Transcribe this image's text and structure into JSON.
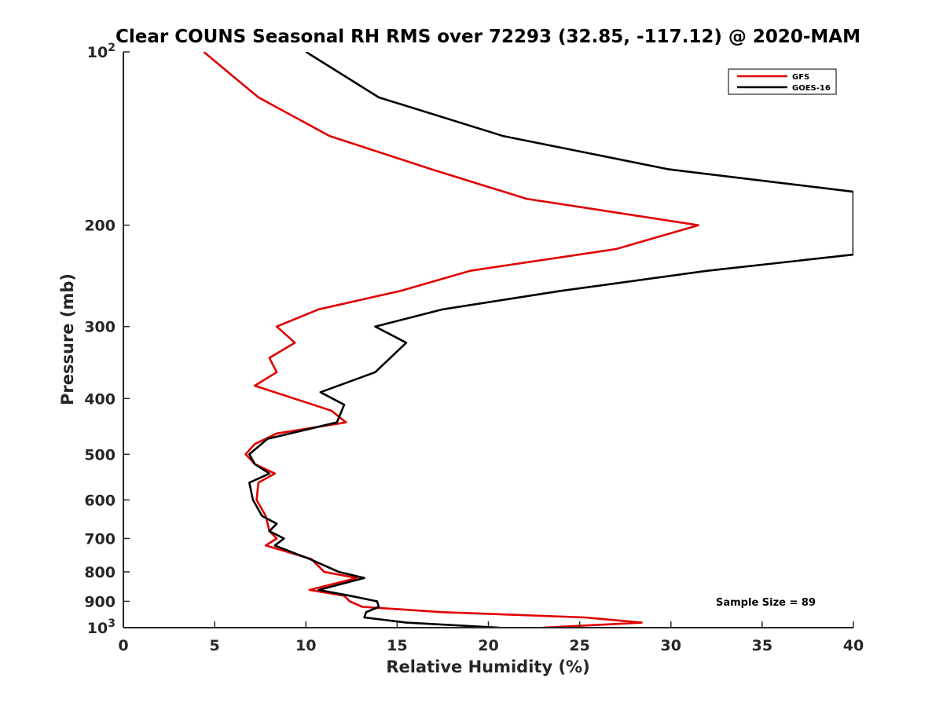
{
  "chart_data": {
    "type": "line",
    "title": "Clear COUNS Seasonal RH RMS over 72293 (32.85, -117.12) @ 2020-MAM",
    "xlabel": "Relative Humidity (%)",
    "ylabel": "Pressure (mb)",
    "xlim": [
      0,
      40
    ],
    "ylim": [
      100,
      1000
    ],
    "y_scale": "log",
    "y_reversed": true,
    "x_ticks": [
      "0",
      "5",
      "10",
      "15",
      "20",
      "25",
      "30",
      "35",
      "40"
    ],
    "y_ticks": [
      {
        "value": 100,
        "base": "10",
        "exp": "2"
      },
      {
        "value": 200,
        "label": "200"
      },
      {
        "value": 300,
        "label": "300"
      },
      {
        "value": 400,
        "label": "400"
      },
      {
        "value": 500,
        "label": "500"
      },
      {
        "value": 600,
        "label": "600"
      },
      {
        "value": 700,
        "label": "700"
      },
      {
        "value": 800,
        "label": "800"
      },
      {
        "value": 900,
        "label": "900"
      },
      {
        "value": 1000,
        "base": "10",
        "exp": "3"
      }
    ],
    "legend_position": "top-right",
    "annotation": "Sample Size = 89",
    "series": [
      {
        "name": "GFS",
        "color": "#e00000",
        "points": [
          [
            4.4,
            100
          ],
          [
            7.4,
            120
          ],
          [
            11.3,
            140
          ],
          [
            16.9,
            160
          ],
          [
            22.1,
            180
          ],
          [
            31.5,
            200
          ],
          [
            27.0,
            220
          ],
          [
            19.0,
            240
          ],
          [
            15.2,
            260
          ],
          [
            10.7,
            280
          ],
          [
            8.4,
            300
          ],
          [
            9.4,
            320
          ],
          [
            8.0,
            340
          ],
          [
            8.4,
            360
          ],
          [
            7.2,
            380
          ],
          [
            11.4,
            420
          ],
          [
            12.2,
            440
          ],
          [
            8.4,
            460
          ],
          [
            7.2,
            480
          ],
          [
            6.7,
            500
          ],
          [
            7.2,
            520
          ],
          [
            8.3,
            540
          ],
          [
            7.4,
            560
          ],
          [
            7.3,
            600
          ],
          [
            7.8,
            640
          ],
          [
            8.0,
            680
          ],
          [
            8.4,
            700
          ],
          [
            7.8,
            720
          ],
          [
            10.3,
            760
          ],
          [
            11.0,
            800
          ],
          [
            12.8,
            820
          ],
          [
            10.2,
            860
          ],
          [
            12.1,
            880
          ],
          [
            12.4,
            900
          ],
          [
            13.1,
            920
          ],
          [
            17.5,
            940
          ],
          [
            25.3,
            960
          ],
          [
            28.4,
            980
          ],
          [
            23.0,
            1000
          ]
        ]
      },
      {
        "name": "GOES-16",
        "color": "#000000",
        "points": [
          [
            10.0,
            100
          ],
          [
            14.0,
            120
          ],
          [
            20.8,
            140
          ],
          [
            29.9,
            160
          ],
          [
            40.0,
            175
          ],
          [
            40.0,
            225
          ],
          [
            32.0,
            240
          ],
          [
            24.0,
            260
          ],
          [
            17.5,
            280
          ],
          [
            13.8,
            300
          ],
          [
            15.5,
            320
          ],
          [
            13.8,
            360
          ],
          [
            10.8,
            390
          ],
          [
            12.1,
            410
          ],
          [
            11.7,
            440
          ],
          [
            7.9,
            470
          ],
          [
            6.9,
            500
          ],
          [
            7.2,
            520
          ],
          [
            8.0,
            540
          ],
          [
            6.9,
            560
          ],
          [
            7.1,
            600
          ],
          [
            7.6,
            640
          ],
          [
            8.4,
            660
          ],
          [
            8.0,
            680
          ],
          [
            8.8,
            700
          ],
          [
            8.3,
            720
          ],
          [
            10.2,
            760
          ],
          [
            11.8,
            800
          ],
          [
            13.2,
            820
          ],
          [
            10.7,
            860
          ],
          [
            12.4,
            880
          ],
          [
            13.9,
            900
          ],
          [
            14.0,
            920
          ],
          [
            13.3,
            940
          ],
          [
            13.2,
            960
          ],
          [
            15.5,
            980
          ],
          [
            20.6,
            1000
          ]
        ]
      }
    ]
  }
}
